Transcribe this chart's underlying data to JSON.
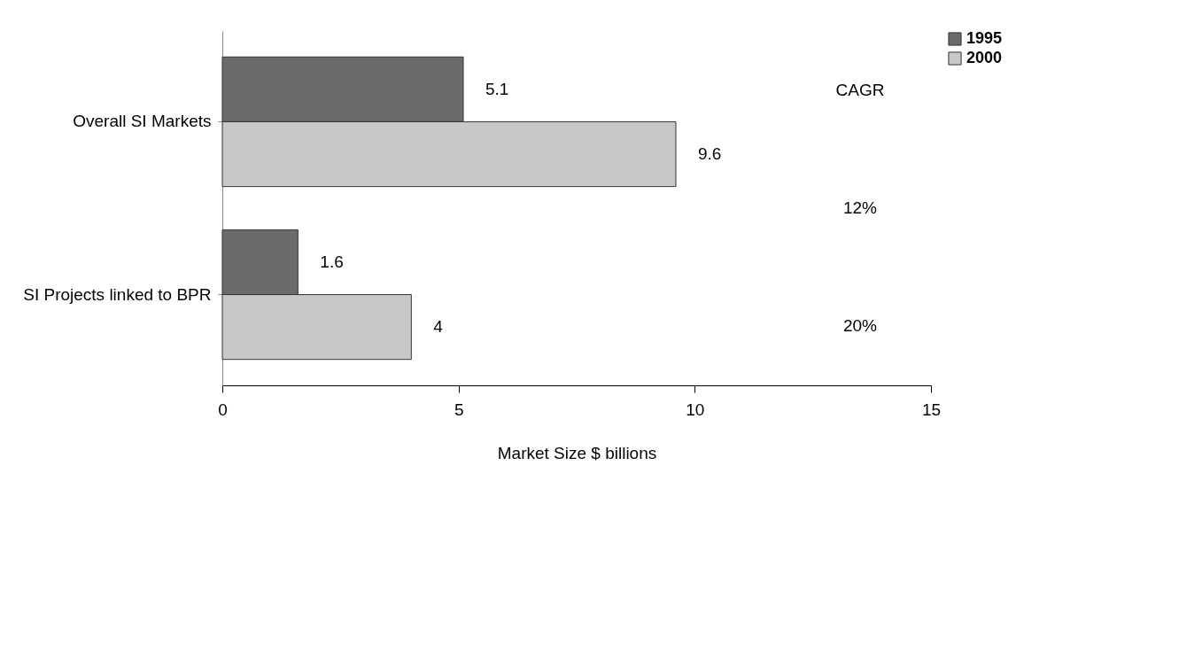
{
  "chart_data": {
    "type": "bar",
    "orientation": "horizontal",
    "categories": [
      "Overall SI Markets",
      "SI Projects linked to BPR"
    ],
    "series": [
      {
        "name": "1995",
        "color": "#6b6b6b",
        "values": [
          5.1,
          1.6
        ]
      },
      {
        "name": "2000",
        "color": "#c8c8c8",
        "values": [
          9.6,
          4
        ]
      }
    ],
    "xlabel": "Market Size $ billions",
    "xlim": [
      0,
      15
    ],
    "xticks": [
      0,
      5,
      10,
      15
    ],
    "data_labels": true,
    "legend": "right",
    "annotations": [
      "CAGR",
      "12%",
      "20%"
    ]
  }
}
